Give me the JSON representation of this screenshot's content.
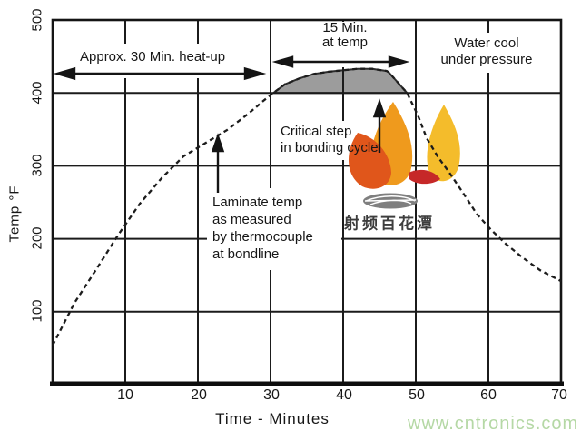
{
  "watermark": {
    "text": "www.cntronics.com",
    "color": "#b5d8a5"
  },
  "logo": {
    "text": "射频百花潭",
    "text_color": "#3d3d3d",
    "flame_dark_orange": "#e0561b",
    "flame_orange": "#ef9a1d",
    "flame_yellow": "#f4bc2b",
    "flame_red": "#c62828",
    "leaf_gray": "#7f7f7f"
  },
  "chart_data": {
    "type": "line",
    "title": "",
    "xlabel": "Time - Minutes",
    "ylabel": "Temp °F",
    "xlim": [
      0,
      70
    ],
    "ylim": [
      0,
      500
    ],
    "xticks": [
      10,
      20,
      30,
      40,
      50,
      60,
      70
    ],
    "yticks_top_down": [
      500,
      400,
      300,
      200,
      100
    ],
    "grid": true,
    "line_color": "#1c1c1c",
    "series": [
      {
        "name": "Laminate temp as measured by thermocouple at bondline",
        "style": "dashed",
        "points": [
          [
            0,
            54
          ],
          [
            3,
            112
          ],
          [
            6,
            158
          ],
          [
            9,
            205
          ],
          [
            12,
            248
          ],
          [
            15,
            283
          ],
          [
            18,
            313
          ],
          [
            21,
            331
          ],
          [
            24,
            349
          ],
          [
            27,
            372
          ],
          [
            29,
            389
          ],
          [
            30.4,
            400
          ],
          [
            32,
            412
          ],
          [
            34,
            420
          ],
          [
            36,
            426
          ],
          [
            38,
            429
          ],
          [
            40,
            431
          ],
          [
            42,
            433
          ],
          [
            44,
            433
          ],
          [
            46,
            430
          ],
          [
            46.3,
            428
          ],
          [
            48.8,
            400
          ],
          [
            50.3,
            369
          ],
          [
            51.5,
            338
          ],
          [
            53,
            313
          ],
          [
            54.6,
            291
          ],
          [
            56.5,
            263
          ],
          [
            58.4,
            234
          ],
          [
            60.3,
            213
          ],
          [
            62.4,
            193
          ],
          [
            64.6,
            175
          ],
          [
            67.1,
            157
          ],
          [
            70,
            142
          ]
        ]
      }
    ],
    "shaded_region": {
      "description": "dwell above 400 °F during bond",
      "baseline": 400,
      "from_t": 30.4,
      "to_t": 48.8,
      "color": "#9c9c9c"
    },
    "annotations": [
      {
        "id": "heatup",
        "lines": [
          "Approx. 30 Min. heat-up"
        ]
      },
      {
        "id": "attemp",
        "lines": [
          "15 Min.",
          "at temp"
        ]
      },
      {
        "id": "watercool",
        "lines": [
          "Water cool",
          "under pressure"
        ]
      },
      {
        "id": "critical",
        "lines": [
          "Critical step",
          "in bonding cycle"
        ]
      },
      {
        "id": "laminate",
        "lines": [
          "Laminate temp",
          "as measured",
          "by thermocouple",
          "at bondline"
        ]
      }
    ]
  }
}
